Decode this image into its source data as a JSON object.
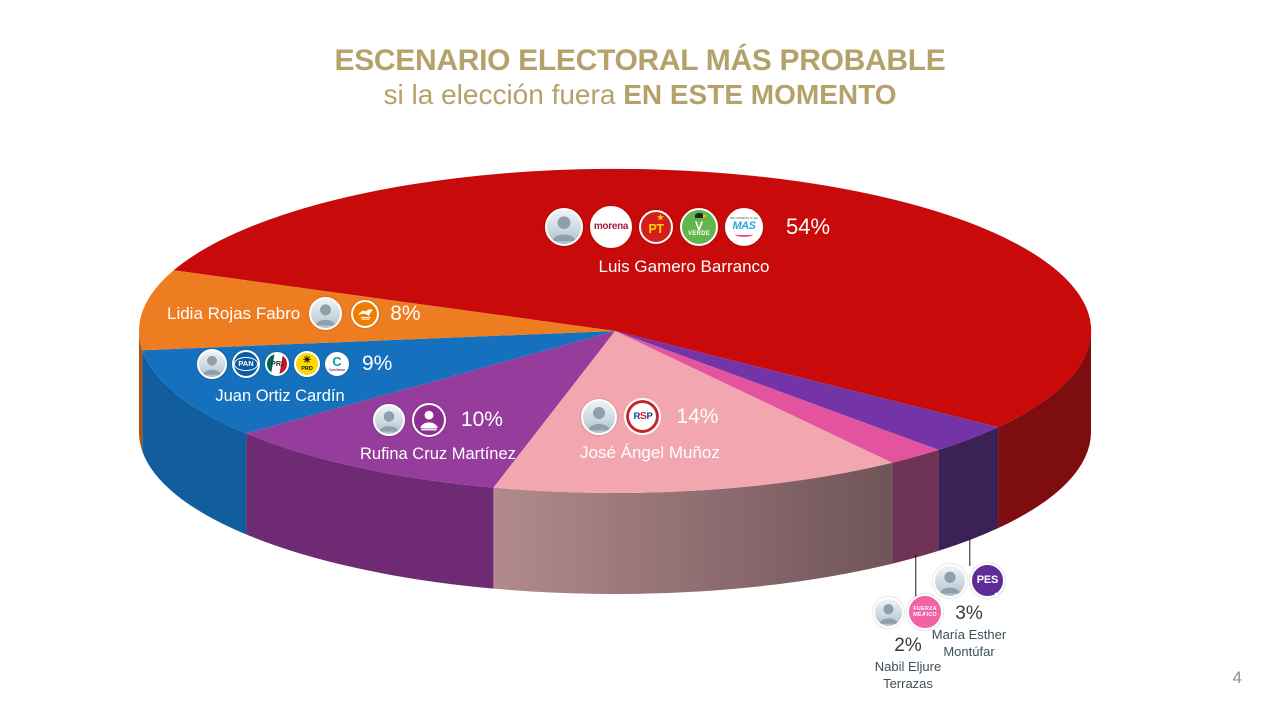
{
  "title": {
    "line1": "ESCENARIO ELECTORAL MÁS PROBABLE",
    "line2_normal": "si la elección fuera ",
    "line2_bold": "EN ESTE MOMENTO",
    "color": "#B4A26A"
  },
  "page_number": "4",
  "chart_data": {
    "type": "pie",
    "effect_3d": true,
    "title": "ESCENARIO ELECTORAL MÁS PROBABLE si la elección fuera EN ESTE MOMENTO",
    "legend_position": "labels-on-slices",
    "start_angle_deg": 158,
    "direction": "clockwise",
    "total": 100,
    "slices": [
      {
        "id": "gamero",
        "candidate": "Luis Gamero Barranco",
        "value": 54,
        "label": "54%",
        "parties": [
          "MORENA",
          "PT",
          "VERDE (PVEM)",
          "MAS"
        ],
        "color": "#C80A0A",
        "side_color": "#7E0D10"
      },
      {
        "id": "montufar",
        "candidate": "María Esther Montúfar",
        "value": 3,
        "label": "3%",
        "parties": [
          "PES"
        ],
        "color": "#7434A8",
        "side_color": "#3B2155"
      },
      {
        "id": "eljure",
        "candidate": "Nabil Eljure Terrazas",
        "value": 2,
        "label": "2%",
        "parties": [
          "Fuerza México"
        ],
        "color": "#E4549E",
        "side_color": "#6E3355"
      },
      {
        "id": "munoz",
        "candidate": "José Ángel Muñoz",
        "value": 14,
        "label": "14%",
        "parties": [
          "RSP"
        ],
        "color": "#F2A6AF",
        "side_color": "#9A7478",
        "side_gradient": [
          "#B28A8E",
          "#6F5458"
        ]
      },
      {
        "id": "cruz",
        "candidate": "Rufina Cruz Martínez",
        "value": 10,
        "label": "10%",
        "parties": [
          "Independiente"
        ],
        "color": "#963C9C",
        "side_color": "#6E2B73"
      },
      {
        "id": "ortiz",
        "candidate": "Juan Ortiz Cardín",
        "value": 9,
        "label": "9%",
        "parties": [
          "PAN",
          "PRI",
          "PRD",
          "Confianza"
        ],
        "color": "#1571BD",
        "side_color": "#115D9E"
      },
      {
        "id": "rojas",
        "candidate": "Lidia Rojas Fabro",
        "value": 8,
        "label": "8%",
        "parties": [
          "Movimiento Ciudadano"
        ],
        "color": "#EE7D22",
        "side_color": "#A85312"
      }
    ]
  },
  "parties": {
    "morena": {
      "text": "morena",
      "color": "#9E2242",
      "bg": "#FFFFFF"
    },
    "pt": {
      "text": "PT",
      "star": "★",
      "color": "#FFD10A",
      "bg": "#D21F1B"
    },
    "verde": {
      "text": "VERDE",
      "v": "V",
      "color": "#FFFFFF",
      "bg": "#64B54E"
    },
    "mas": {
      "text": "MAS",
      "sub": "MOVIMIENTO AUTÉNTICO SOCIAL",
      "color": "#2BA3DB",
      "bg": "#FFFFFF"
    },
    "mc": {
      "name": "Movimiento Ciudadano",
      "color": "#FFFFFF",
      "bg": "#F07D00"
    },
    "pan": {
      "text": "PAN",
      "color": "#FFFFFF",
      "bg": "#0B5BA5"
    },
    "pri": {
      "text": "PRI",
      "color": "#1E3D35"
    },
    "prd": {
      "text": "PRD",
      "sun": "☀",
      "color": "#111111",
      "bg": "#FFD900"
    },
    "confianza": {
      "text": "C",
      "sub": "Confianza",
      "color": "#00A79D",
      "bg": "#FFFFFF"
    },
    "independiente": {
      "name": "Candidata independiente",
      "color": "#FFFFFF",
      "bg": "#8E2D92"
    },
    "rsp": {
      "l1": "R",
      "l2": "S",
      "l3": "P",
      "color": "#1B3F8F",
      "ring": "#C1272D",
      "bg": "#FFFFFF"
    },
    "fuerza": {
      "line1": "FUERZA",
      "line2": "MÉ✗ICO",
      "color": "#FFFFFF",
      "bg": "#F263A5"
    },
    "pes": {
      "text": "PES",
      "check": "✓",
      "color": "#FFFFFF",
      "bg": "#5E2B97"
    }
  }
}
